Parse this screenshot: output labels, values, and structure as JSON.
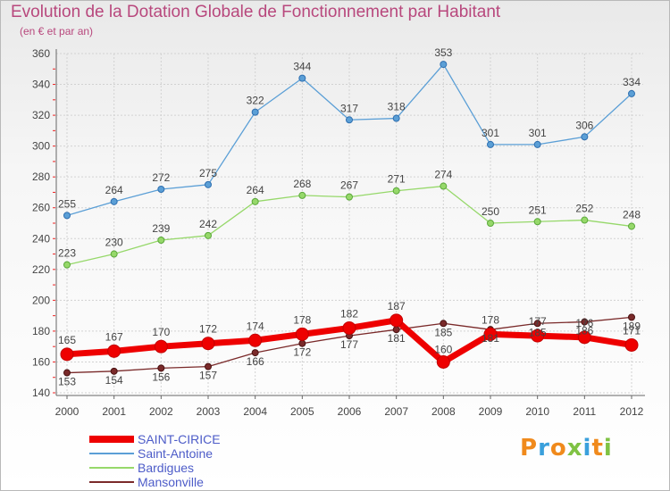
{
  "title": "Evolution de la Dotation Globale de Fonctionnement par Habitant",
  "subtitle": "(en € et par an)",
  "logo": {
    "text": "Proxiti",
    "letter_colors": [
      "#f08a1c",
      "#3aa0dc",
      "#f08a1c",
      "#7fc243",
      "#3aa0dc",
      "#f08a1c",
      "#7fc243"
    ]
  },
  "chart_data": {
    "type": "line",
    "x": [
      "2000",
      "2001",
      "2002",
      "2003",
      "2004",
      "2005",
      "2006",
      "2007",
      "2008",
      "2009",
      "2010",
      "2011",
      "2012"
    ],
    "ylim": [
      140,
      360
    ],
    "yticks": [
      140,
      160,
      180,
      200,
      220,
      240,
      260,
      280,
      300,
      320,
      340,
      360
    ],
    "grid": true,
    "legend_position": "bottom-left",
    "series": [
      {
        "name": "SAINT-CIRICE",
        "color": "#ee0000",
        "values": [
          165,
          167,
          170,
          172,
          174,
          178,
          182,
          187,
          160,
          178,
          177,
          176,
          171
        ]
      },
      {
        "name": "Saint-Antoine",
        "color": "#5b9fd6",
        "values": [
          255,
          264,
          272,
          275,
          322,
          344,
          317,
          318,
          353,
          301,
          301,
          306,
          334
        ]
      },
      {
        "name": "Bardigues",
        "color": "#96d86a",
        "values": [
          223,
          230,
          239,
          242,
          264,
          268,
          267,
          271,
          274,
          250,
          251,
          252,
          248
        ]
      },
      {
        "name": "Mansonville",
        "color": "#7a2a2a",
        "values": [
          153,
          154,
          156,
          157,
          166,
          172,
          177,
          181,
          185,
          181,
          185,
          186,
          189
        ]
      }
    ]
  }
}
